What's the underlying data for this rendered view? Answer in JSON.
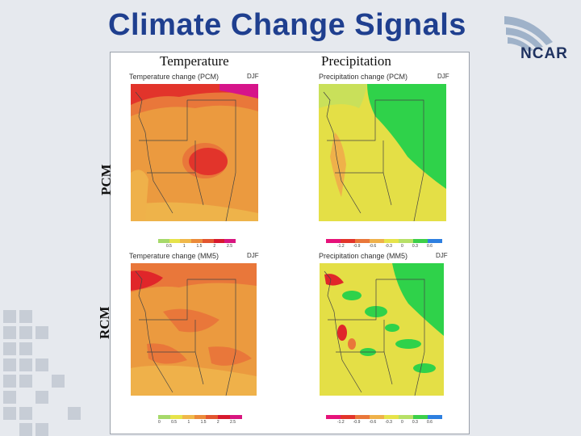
{
  "slide": {
    "title": "Climate Change Signals",
    "logo_text": "NCAR",
    "col_labels": [
      "Temperature",
      "Precipitation"
    ],
    "row_labels": [
      "PCM",
      "RCM"
    ]
  },
  "panels": [
    {
      "id": "pcm-temp",
      "title": "Temperature change (PCM)",
      "season": "DJF",
      "colorbar": [
        "#a6d96a",
        "#e6e34a",
        "#f0b84a",
        "#eb8a3a",
        "#e2552f",
        "#d7192e",
        "#d8157f"
      ],
      "ticks": [
        "0.5",
        "1",
        "1.5",
        "2",
        "2.5"
      ]
    },
    {
      "id": "pcm-precip",
      "title": "Precipitation change (PCM)",
      "season": "DJF",
      "colorbar": [
        "#e6127a",
        "#e2342b",
        "#e9773a",
        "#efb14a",
        "#e6e34a",
        "#b7e067",
        "#3ccf4a",
        "#2d7fe0"
      ],
      "ticks": [
        "-1.2",
        "-0.9",
        "-0.6",
        "-0.3",
        "0",
        "0.3",
        "0.6"
      ]
    },
    {
      "id": "rcm-temp",
      "title": "Temperature change (MM5)",
      "season": "DJF",
      "colorbar": [
        "#a6d96a",
        "#e6e34a",
        "#f0b84a",
        "#eb8a3a",
        "#e2552f",
        "#d7192e",
        "#d8157f"
      ],
      "ticks": [
        "0",
        "0.5",
        "1",
        "1.5",
        "2",
        "2.5"
      ]
    },
    {
      "id": "rcm-precip",
      "title": "Precipitation change (MM5)",
      "season": "DJF",
      "colorbar": [
        "#e6127a",
        "#e2342b",
        "#e9773a",
        "#efb14a",
        "#e6e34a",
        "#b7e067",
        "#3ccf4a",
        "#2d7fe0"
      ],
      "ticks": [
        "-1.2",
        "-0.9",
        "-0.6",
        "-0.3",
        "0",
        "0.3",
        "0.6"
      ]
    }
  ],
  "colors": {
    "title": "#1f3f8f",
    "orange": "#eb9a3f",
    "red": "#e0262a",
    "magenta": "#d6148a",
    "yellow": "#e4df46",
    "green": "#2fd24a"
  }
}
